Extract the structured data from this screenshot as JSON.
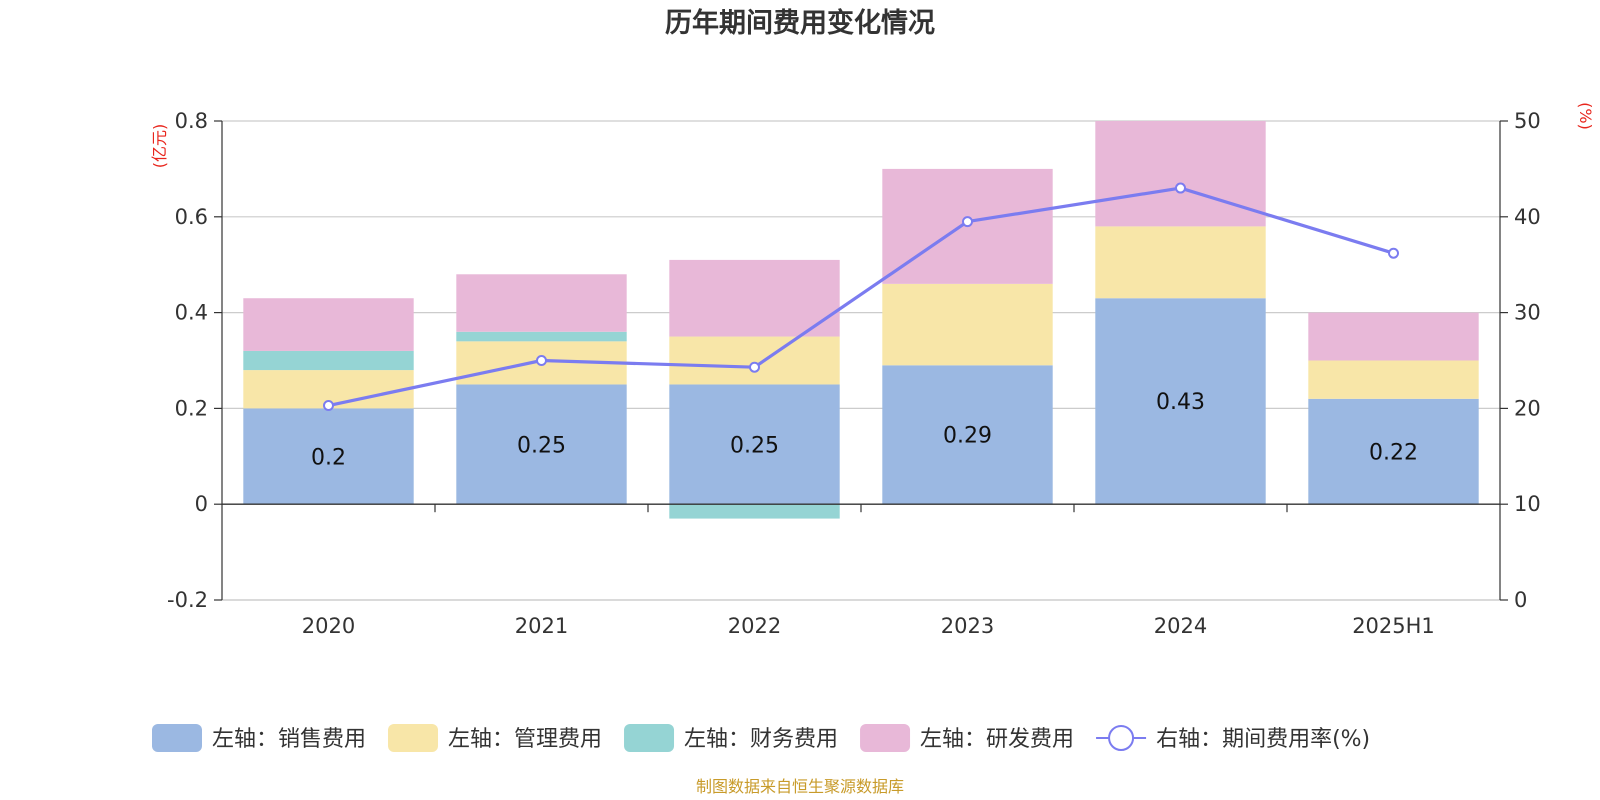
{
  "chart_data": {
    "type": "bar",
    "stacked": true,
    "title": "历年期间费用变化情况",
    "categories": [
      "2020",
      "2021",
      "2022",
      "2023",
      "2024",
      "2025H1"
    ],
    "left_axis": {
      "unit_label": "(亿元)",
      "ylim": [
        -0.2,
        0.8
      ],
      "ticks": [
        -0.2,
        0,
        0.2,
        0.4,
        0.6,
        0.8
      ],
      "tick_labels": [
        "-0.2",
        "0",
        "0.2",
        "0.4",
        "0.6",
        "0.8"
      ]
    },
    "right_axis": {
      "unit_label": "(%)",
      "ylim": [
        0,
        50
      ],
      "ticks": [
        0,
        10,
        20,
        30,
        40,
        50
      ],
      "tick_labels": [
        "0",
        "10",
        "20",
        "30",
        "40",
        "50"
      ]
    },
    "series": [
      {
        "name": "左轴：销售费用",
        "axis": "left",
        "type": "bar",
        "color": "#9bb8e2",
        "values": [
          0.2,
          0.25,
          0.25,
          0.29,
          0.43,
          0.22
        ],
        "labels": [
          "0.2",
          "0.25",
          "0.25",
          "0.29",
          "0.43",
          "0.22"
        ]
      },
      {
        "name": "左轴：管理费用",
        "axis": "left",
        "type": "bar",
        "color": "#f8e6a8",
        "values": [
          0.08,
          0.09,
          0.1,
          0.17,
          0.15,
          0.08
        ]
      },
      {
        "name": "左轴：财务费用",
        "axis": "left",
        "type": "bar",
        "color": "#95d4d4",
        "values": [
          0.04,
          0.02,
          -0.03,
          0.0,
          0.0,
          0.0
        ]
      },
      {
        "name": "左轴：研发费用",
        "axis": "left",
        "type": "bar",
        "color": "#e8b8d8",
        "values": [
          0.11,
          0.12,
          0.16,
          0.24,
          0.22,
          0.1
        ]
      },
      {
        "name": "右轴：期间费用率(%)",
        "axis": "right",
        "type": "line",
        "color": "#7b7cf0",
        "values": [
          20.3,
          25.0,
          24.3,
          39.5,
          43.0,
          36.2
        ]
      }
    ],
    "legend_position": "bottom",
    "grid": true
  },
  "source_note": "制图数据来自恒生聚源数据库"
}
